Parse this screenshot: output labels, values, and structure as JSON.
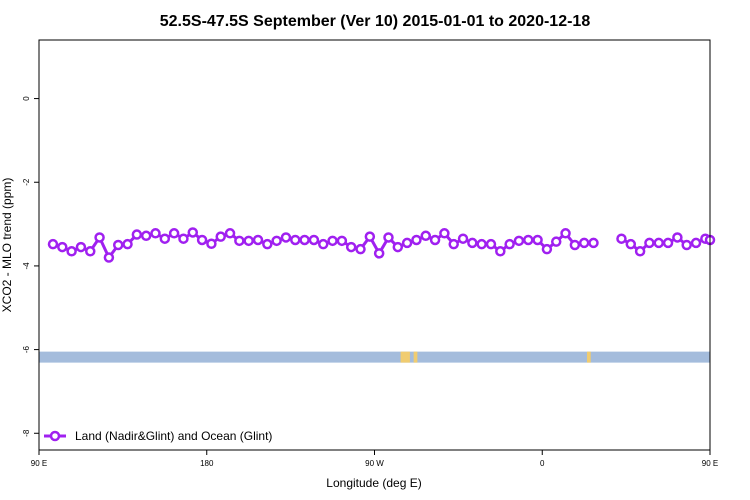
{
  "chart_data": {
    "type": "line",
    "title": "52.5S-47.5S September (Ver 10)   2015-01-01 to 2020-12-18",
    "xlabel": "Longitude (deg E)",
    "ylabel": "XCO2 - MLO trend (ppm)",
    "xlim": [
      90,
      450
    ],
    "ylim": [
      -8.4,
      1.4
    ],
    "x_ticks": [
      {
        "value": 90,
        "label": "90 E"
      },
      {
        "value": 180,
        "label": "180"
      },
      {
        "value": 270,
        "label": "90 W"
      },
      {
        "value": 360,
        "label": "0"
      },
      {
        "value": 450,
        "label": "90 E"
      }
    ],
    "y_ticks": [
      {
        "value": 0,
        "label": "0"
      },
      {
        "value": -2,
        "label": "-2"
      },
      {
        "value": -4,
        "label": "-4"
      },
      {
        "value": -6,
        "label": "-6"
      },
      {
        "value": -8,
        "label": "-8"
      }
    ],
    "series": [
      {
        "name": "Land (Nadir&Glint) and Ocean (Glint)",
        "color": "#a020f0",
        "segments": [
          {
            "x": [
              97.5,
              102.5,
              107.5,
              112.5,
              117.5,
              122.5,
              127.5,
              132.5,
              137.5,
              142.5,
              147.5,
              152.5,
              157.5,
              162.5,
              167.5,
              172.5,
              177.5,
              182.5,
              187.5,
              192.5,
              197.5,
              202.5,
              207.5,
              212.5,
              217.5,
              222.5,
              227.5,
              232.5,
              237.5,
              242.5,
              247.5,
              252.5,
              257.5,
              262.5,
              267.5,
              272.5,
              277.5,
              282.5,
              287.5,
              292.5,
              297.5,
              302.5,
              307.5,
              312.5,
              317.5,
              322.5,
              327.5,
              332.5,
              337.5,
              342.5,
              347.5,
              352.5,
              357.5,
              362.5,
              367.5,
              372.5,
              377.5,
              382.5,
              387.5,
              392.5,
              397.5
            ],
            "y": [
              -3.48,
              -3.55,
              -3.65,
              -3.55,
              -3.65,
              -3.32,
              -3.8,
              -3.5,
              -3.48,
              -3.25,
              -3.28,
              -3.22,
              -3.35,
              -3.22,
              -3.35,
              -3.2,
              -3.38,
              -3.47,
              -3.3,
              -3.22,
              -3.4,
              -3.4,
              -3.38,
              -3.48,
              -3.4,
              -3.32,
              -3.38,
              -3.38,
              -3.38,
              -3.48,
              -3.4,
              -3.4,
              -3.55,
              -3.6,
              -3.3,
              -3.7,
              -3.32,
              -3.55,
              -3.45,
              -3.38,
              -3.28,
              -3.38,
              -3.22,
              -3.48,
              -3.35,
              -3.45,
              -3.48,
              -3.48,
              -3.65,
              -3.48,
              -3.4,
              -3.38,
              -3.38,
              -3.6,
              -3.42,
              -3.22,
              -3.5,
              -3.45,
              -3.45,
              null,
              null
            ]
          },
          {
            "x": [
              402.5,
              407.5,
              412.5,
              417.5,
              422.5,
              427.5,
              432.5,
              437.5,
              442.5,
              447.5,
              452.5,
              457.5,
              462.5,
              467.5,
              472.5,
              477.5,
              482.5,
              487.5,
              492.5,
              497.5,
              502.5,
              507.5,
              512.5,
              517.5,
              522.5,
              527.5,
              532.5,
              537.5,
              542.5,
              547.5,
              552.5,
              557.5
            ],
            "y": [
              -3.35,
              -3.48,
              -3.65,
              -3.45,
              -3.45,
              -3.45,
              -3.32,
              -3.5,
              -3.45,
              -3.35,
              -3.38,
              null,
              null,
              null,
              null,
              null,
              null,
              null,
              null,
              null,
              null,
              null,
              null,
              null,
              null,
              null,
              null,
              null,
              null,
              null,
              null,
              null
            ]
          }
        ]
      }
    ],
    "legend": {
      "placement": "bottom-left"
    },
    "surface_strip": {
      "y": -6.18,
      "ocean_color": "#a4bcdc",
      "land_color": "#f0cc70",
      "land_spans": [
        [
          284,
          289
        ],
        [
          291,
          293
        ],
        [
          384,
          386
        ]
      ]
    }
  }
}
